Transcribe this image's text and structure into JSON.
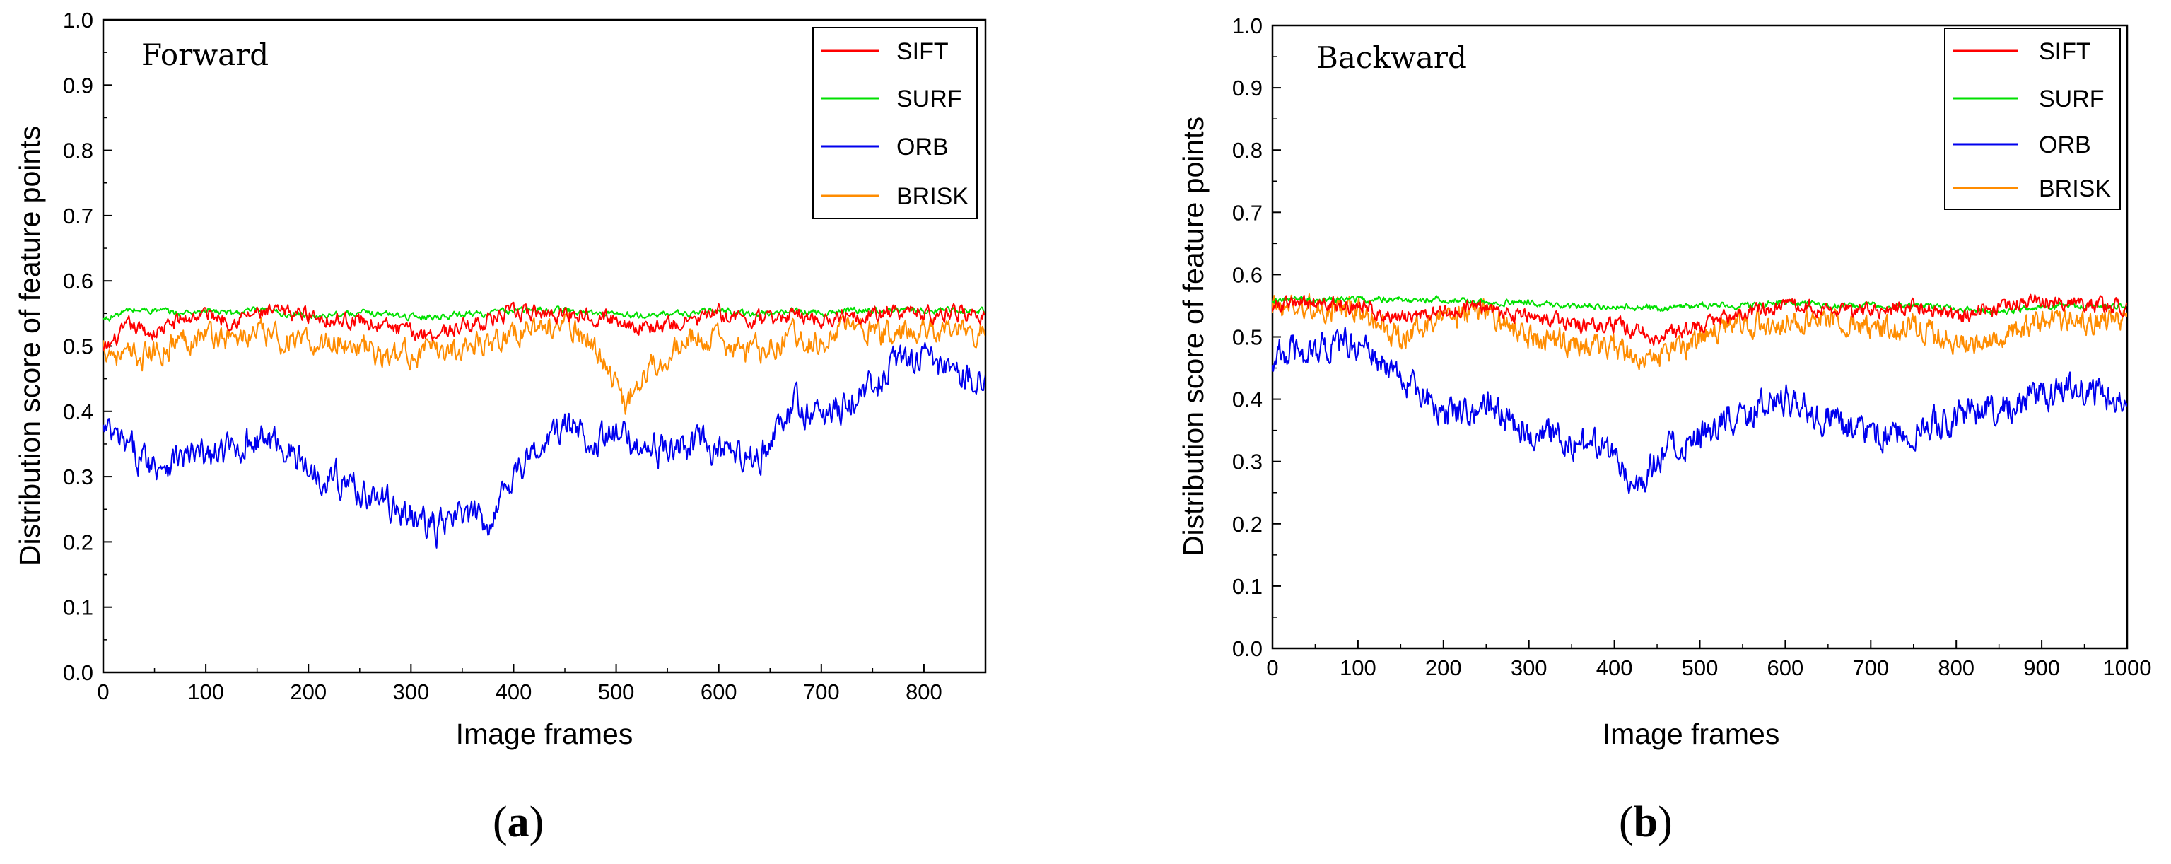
{
  "chart_data": [
    {
      "type": "line",
      "panel_label": {
        "open": "(",
        "letter": "a",
        "close": ")"
      },
      "annotation": "Forward",
      "xlabel": "Image frames",
      "ylabel": "Distribution score of feature points",
      "xlim": [
        0,
        860
      ],
      "ylim": [
        0,
        1.0
      ],
      "xticks": [
        0,
        100,
        200,
        300,
        400,
        500,
        600,
        700,
        800
      ],
      "yticks": [
        0.0,
        0.1,
        0.2,
        0.3,
        0.4,
        0.5,
        0.6,
        0.7,
        0.8,
        0.9,
        1.0
      ],
      "ytick_labels": [
        "0.0",
        "0.1",
        "0.2",
        "0.3",
        "0.4",
        "0.5",
        "0.6",
        "0.7",
        "0.8",
        "0.9",
        "1.0"
      ],
      "legend_position": "top-right",
      "series": [
        {
          "name": "SIFT",
          "color": "#ff0000",
          "x": [
            0,
            25,
            50,
            75,
            100,
            125,
            150,
            175,
            200,
            225,
            250,
            275,
            300,
            325,
            350,
            375,
            400,
            425,
            450,
            475,
            500,
            525,
            550,
            575,
            600,
            625,
            650,
            675,
            700,
            725,
            750,
            775,
            800,
            825,
            860
          ],
          "values": [
            0.49,
            0.53,
            0.52,
            0.54,
            0.55,
            0.54,
            0.55,
            0.55,
            0.55,
            0.54,
            0.54,
            0.53,
            0.52,
            0.52,
            0.53,
            0.54,
            0.55,
            0.55,
            0.55,
            0.55,
            0.54,
            0.53,
            0.53,
            0.54,
            0.55,
            0.54,
            0.54,
            0.55,
            0.54,
            0.55,
            0.55,
            0.55,
            0.55,
            0.55,
            0.55
          ]
        },
        {
          "name": "SURF",
          "color": "#00e000",
          "x": [
            0,
            25,
            50,
            75,
            100,
            125,
            150,
            175,
            200,
            225,
            250,
            275,
            300,
            325,
            350,
            375,
            400,
            425,
            450,
            475,
            500,
            525,
            550,
            575,
            600,
            625,
            650,
            675,
            700,
            725,
            750,
            775,
            800,
            825,
            860
          ],
          "values": [
            0.54,
            0.555,
            0.555,
            0.55,
            0.555,
            0.55,
            0.555,
            0.55,
            0.545,
            0.55,
            0.55,
            0.55,
            0.545,
            0.545,
            0.55,
            0.55,
            0.555,
            0.555,
            0.555,
            0.55,
            0.55,
            0.545,
            0.55,
            0.55,
            0.555,
            0.55,
            0.55,
            0.555,
            0.55,
            0.555,
            0.555,
            0.555,
            0.555,
            0.555,
            0.555
          ]
        },
        {
          "name": "ORB",
          "color": "#0000ee",
          "x": [
            0,
            25,
            50,
            75,
            100,
            125,
            150,
            175,
            200,
            225,
            250,
            275,
            300,
            325,
            350,
            375,
            400,
            425,
            450,
            475,
            500,
            525,
            550,
            575,
            600,
            625,
            650,
            675,
            700,
            725,
            750,
            775,
            800,
            825,
            860
          ],
          "values": [
            0.37,
            0.34,
            0.32,
            0.33,
            0.33,
            0.34,
            0.36,
            0.35,
            0.31,
            0.3,
            0.28,
            0.26,
            0.24,
            0.22,
            0.24,
            0.23,
            0.31,
            0.34,
            0.38,
            0.36,
            0.36,
            0.35,
            0.34,
            0.35,
            0.34,
            0.32,
            0.35,
            0.41,
            0.39,
            0.41,
            0.44,
            0.48,
            0.48,
            0.46,
            0.45
          ]
        },
        {
          "name": "BRISK",
          "color": "#ff8c00",
          "x": [
            0,
            25,
            50,
            75,
            100,
            125,
            150,
            175,
            200,
            225,
            250,
            275,
            300,
            325,
            350,
            375,
            400,
            425,
            450,
            475,
            500,
            510,
            525,
            550,
            575,
            600,
            625,
            650,
            675,
            700,
            725,
            750,
            775,
            800,
            825,
            860
          ],
          "values": [
            0.5,
            0.48,
            0.49,
            0.51,
            0.52,
            0.51,
            0.52,
            0.51,
            0.5,
            0.51,
            0.5,
            0.48,
            0.49,
            0.49,
            0.5,
            0.51,
            0.52,
            0.53,
            0.53,
            0.51,
            0.44,
            0.41,
            0.46,
            0.49,
            0.51,
            0.51,
            0.49,
            0.5,
            0.52,
            0.5,
            0.53,
            0.52,
            0.52,
            0.53,
            0.52,
            0.52
          ]
        }
      ]
    },
    {
      "type": "line",
      "panel_label": {
        "open": "(",
        "letter": "b",
        "close": ")"
      },
      "annotation": "Backward",
      "xlabel": "Image frames",
      "ylabel": "Distribution score of feature points",
      "xlim": [
        0,
        1000
      ],
      "ylim": [
        0,
        1.0
      ],
      "xticks": [
        0,
        100,
        200,
        300,
        400,
        500,
        600,
        700,
        800,
        900,
        1000
      ],
      "yticks": [
        0.0,
        0.1,
        0.2,
        0.3,
        0.4,
        0.5,
        0.6,
        0.7,
        0.8,
        0.9,
        1.0
      ],
      "ytick_labels": [
        "0.0",
        "0.1",
        "0.2",
        "0.3",
        "0.4",
        "0.5",
        "0.6",
        "0.7",
        "0.8",
        "0.9",
        "1.0"
      ],
      "legend_position": "top-right",
      "series": [
        {
          "name": "SIFT",
          "color": "#ff0000",
          "x": [
            0,
            50,
            100,
            150,
            200,
            250,
            300,
            350,
            400,
            450,
            500,
            550,
            600,
            650,
            700,
            750,
            800,
            850,
            900,
            950,
            1000
          ],
          "values": [
            0.55,
            0.555,
            0.55,
            0.53,
            0.54,
            0.55,
            0.53,
            0.52,
            0.52,
            0.5,
            0.52,
            0.54,
            0.55,
            0.55,
            0.54,
            0.55,
            0.53,
            0.55,
            0.56,
            0.55,
            0.55
          ]
        },
        {
          "name": "SURF",
          "color": "#00e000",
          "x": [
            0,
            50,
            100,
            150,
            200,
            250,
            300,
            350,
            400,
            450,
            500,
            550,
            600,
            650,
            700,
            750,
            800,
            850,
            900,
            950,
            1000
          ],
          "values": [
            0.56,
            0.56,
            0.56,
            0.56,
            0.56,
            0.555,
            0.555,
            0.55,
            0.55,
            0.545,
            0.55,
            0.55,
            0.555,
            0.55,
            0.55,
            0.55,
            0.545,
            0.54,
            0.55,
            0.55,
            0.55
          ]
        },
        {
          "name": "ORB",
          "color": "#0000ee",
          "x": [
            0,
            50,
            100,
            150,
            200,
            250,
            300,
            350,
            400,
            430,
            450,
            500,
            550,
            600,
            650,
            700,
            750,
            800,
            850,
            900,
            950,
            1000
          ],
          "values": [
            0.47,
            0.48,
            0.49,
            0.43,
            0.38,
            0.39,
            0.35,
            0.33,
            0.31,
            0.26,
            0.31,
            0.34,
            0.38,
            0.4,
            0.37,
            0.34,
            0.35,
            0.37,
            0.39,
            0.41,
            0.42,
            0.38
          ]
        },
        {
          "name": "BRISK",
          "color": "#ff8c00",
          "x": [
            0,
            50,
            100,
            150,
            200,
            250,
            300,
            350,
            400,
            450,
            500,
            550,
            600,
            650,
            700,
            750,
            800,
            850,
            900,
            950,
            1000
          ],
          "values": [
            0.55,
            0.55,
            0.54,
            0.5,
            0.53,
            0.54,
            0.5,
            0.49,
            0.48,
            0.46,
            0.5,
            0.52,
            0.52,
            0.53,
            0.51,
            0.52,
            0.49,
            0.5,
            0.52,
            0.53,
            0.53
          ]
        }
      ]
    }
  ]
}
